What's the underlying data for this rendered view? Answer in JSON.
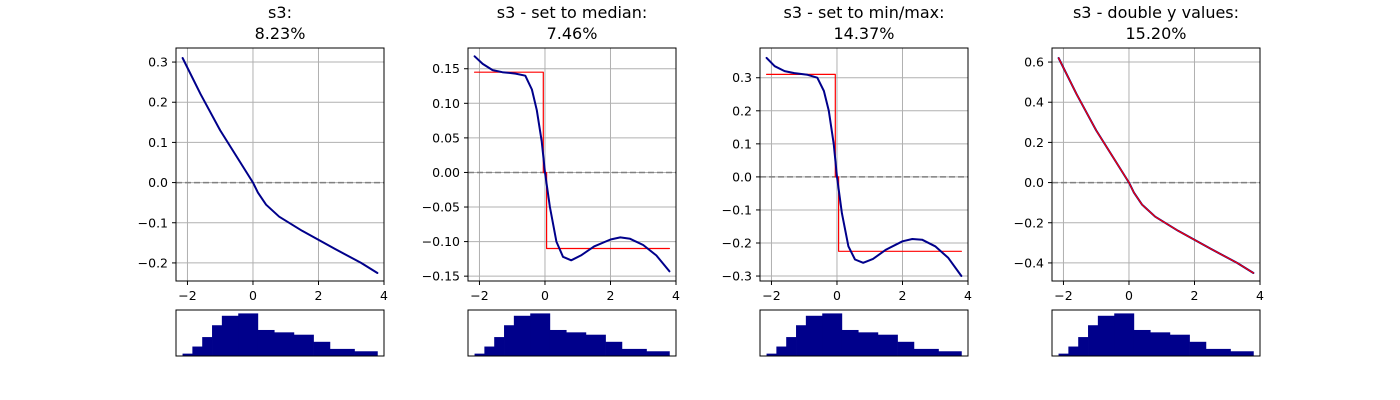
{
  "colors": {
    "curve": "#00008b",
    "step": "#ff0000",
    "zero_line": "#808080",
    "grid": "#b0b0b0",
    "hist": "#00008b"
  },
  "histogram": {
    "type": "bar",
    "bin_edges": [
      -2.15,
      -1.85,
      -1.55,
      -1.25,
      -0.95,
      -0.45,
      0.15,
      0.65,
      1.25,
      1.85,
      2.35,
      3.1,
      3.8
    ],
    "heights": [
      1,
      4,
      8,
      13,
      17,
      18,
      11,
      10,
      9,
      6,
      3,
      2
    ]
  },
  "chart_data": [
    {
      "type": "line",
      "title": "s3:\n8.23%",
      "xlim": [
        -2.35,
        4.0
      ],
      "ylim": [
        -0.245,
        0.335
      ],
      "xticks": [
        -2,
        0,
        2,
        4
      ],
      "yticks": [
        -0.2,
        -0.1,
        0.0,
        0.1,
        0.2,
        0.3
      ],
      "ytick_labels": [
        "−0.2",
        "−0.1",
        "0.0",
        "0.1",
        "0.2",
        "0.3"
      ],
      "zero_line": 0,
      "grid": true,
      "series": [
        {
          "x": [
            -2.15,
            -1.6,
            -1.0,
            -0.5,
            0.0,
            0.15,
            0.4,
            0.8,
            1.5,
            2.5,
            3.3,
            3.8
          ],
          "y": [
            0.31,
            0.22,
            0.13,
            0.065,
            0.0,
            -0.025,
            -0.055,
            -0.085,
            -0.12,
            -0.165,
            -0.2,
            -0.225
          ]
        }
      ]
    },
    {
      "type": "line",
      "title": "s3 - set to median:\n7.46%",
      "xlim": [
        -2.35,
        4.0
      ],
      "ylim": [
        -0.157,
        0.18
      ],
      "xticks": [
        -2,
        0,
        2,
        4
      ],
      "yticks": [
        -0.15,
        -0.1,
        -0.05,
        0.0,
        0.05,
        0.1,
        0.15
      ],
      "ytick_labels": [
        "−0.15",
        "−0.10",
        "−0.05",
        "0.00",
        "0.05",
        "0.10",
        "0.15"
      ],
      "zero_line": 0,
      "grid": true,
      "series": [
        {
          "x": [
            -2.15,
            -1.9,
            -1.6,
            -1.3,
            -0.9,
            -0.6,
            -0.4,
            -0.25,
            -0.1,
            0.0,
            0.15,
            0.35,
            0.55,
            0.8,
            1.1,
            1.5,
            2.0,
            2.3,
            2.6,
            3.0,
            3.4,
            3.8
          ],
          "y": [
            0.168,
            0.157,
            0.148,
            0.145,
            0.143,
            0.14,
            0.12,
            0.09,
            0.045,
            0.0,
            -0.05,
            -0.1,
            -0.122,
            -0.127,
            -0.12,
            -0.107,
            -0.097,
            -0.094,
            -0.096,
            -0.105,
            -0.12,
            -0.143
          ]
        },
        {
          "style": "step",
          "x": [
            -2.15,
            -0.05,
            -0.05,
            0.05,
            0.05,
            3.8
          ],
          "y": [
            0.145,
            0.145,
            0.0,
            0.0,
            -0.11,
            -0.11
          ]
        }
      ]
    },
    {
      "type": "line",
      "title": "s3 - set to min/max:\n14.37%",
      "xlim": [
        -2.35,
        4.0
      ],
      "ylim": [
        -0.315,
        0.39
      ],
      "xticks": [
        -2,
        0,
        2,
        4
      ],
      "yticks": [
        -0.3,
        -0.2,
        -0.1,
        0.0,
        0.1,
        0.2,
        0.3
      ],
      "ytick_labels": [
        "−0.3",
        "−0.2",
        "−0.1",
        "0.0",
        "0.1",
        "0.2",
        "0.3"
      ],
      "zero_line": 0,
      "grid": true,
      "series": [
        {
          "x": [
            -2.15,
            -1.9,
            -1.6,
            -1.3,
            -0.9,
            -0.6,
            -0.4,
            -0.25,
            -0.1,
            0.0,
            0.15,
            0.35,
            0.55,
            0.8,
            1.1,
            1.5,
            2.0,
            2.3,
            2.6,
            3.0,
            3.4,
            3.8
          ],
          "y": [
            0.36,
            0.335,
            0.32,
            0.314,
            0.309,
            0.3,
            0.26,
            0.2,
            0.1,
            0.0,
            -0.11,
            -0.21,
            -0.25,
            -0.26,
            -0.248,
            -0.22,
            -0.195,
            -0.188,
            -0.19,
            -0.21,
            -0.245,
            -0.3
          ]
        },
        {
          "style": "step",
          "x": [
            -2.15,
            -0.05,
            -0.05,
            0.05,
            0.05,
            3.8
          ],
          "y": [
            0.31,
            0.31,
            0.0,
            0.0,
            -0.225,
            -0.225
          ]
        }
      ]
    },
    {
      "type": "line",
      "title": "s3 - double y values:\n15.20%",
      "xlim": [
        -2.35,
        4.0
      ],
      "ylim": [
        -0.49,
        0.67
      ],
      "xticks": [
        -2,
        0,
        2,
        4
      ],
      "yticks": [
        -0.4,
        -0.2,
        0.0,
        0.2,
        0.4,
        0.6
      ],
      "ytick_labels": [
        "−0.4",
        "−0.2",
        "0.0",
        "0.2",
        "0.4",
        "0.6"
      ],
      "zero_line": 0,
      "grid": true,
      "series": [
        {
          "x": [
            -2.15,
            -1.6,
            -1.0,
            -0.5,
            0.0,
            0.15,
            0.4,
            0.8,
            1.5,
            2.5,
            3.3,
            3.8
          ],
          "y": [
            0.62,
            0.44,
            0.26,
            0.13,
            0.0,
            -0.05,
            -0.11,
            -0.17,
            -0.24,
            -0.33,
            -0.4,
            -0.45
          ]
        },
        {
          "x": [
            -2.15,
            -1.6,
            -1.0,
            -0.5,
            0.0,
            0.15,
            0.4,
            0.8,
            1.5,
            2.5,
            3.3,
            3.8
          ],
          "y": [
            0.62,
            0.44,
            0.26,
            0.13,
            0.0,
            -0.05,
            -0.11,
            -0.17,
            -0.24,
            -0.33,
            -0.4,
            -0.45
          ]
        }
      ]
    }
  ]
}
